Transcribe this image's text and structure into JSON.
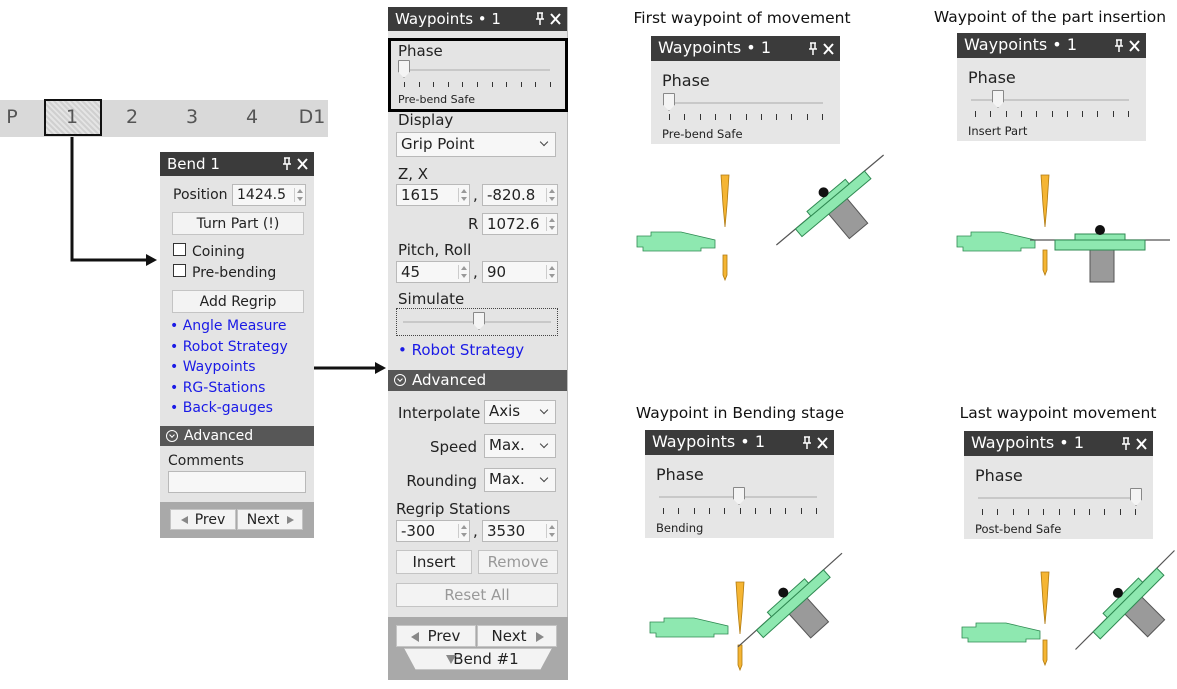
{
  "tabs": [
    "P",
    "1",
    "2",
    "3",
    "4",
    "D1"
  ],
  "bend_panel": {
    "title": "Bend 1",
    "position_label": "Position",
    "position": "1424.5",
    "turn_part": "Turn Part (!)",
    "checkboxes": [
      "Coining",
      "Pre-bending"
    ],
    "add_regrip": "Add Regrip",
    "links": [
      "• Angle Measure",
      "• Robot Strategy",
      "• Waypoints",
      "• RG-Stations",
      "• Back-gauges"
    ],
    "advanced": "Advanced",
    "comments_label": "Comments",
    "prev": "Prev",
    "next": "Next"
  },
  "waypoints_panel": {
    "title": "Waypoints • 1",
    "phase_label": "Phase",
    "phase_value": "Pre-bend Safe",
    "display_label": "Display",
    "display_value": "Grip Point",
    "zx_label": "Z, X",
    "z": "1615",
    "separator": ",",
    "x": "-820.8",
    "r_label": "R",
    "r": "1072.6",
    "pitch_roll_label": "Pitch, Roll",
    "pitch": "45",
    "roll": "90",
    "simulate_label": "Simulate",
    "link": "• Robot Strategy",
    "advanced": "Advanced",
    "interpolate_label": "Interpolate",
    "interpolate": "Axis",
    "speed_label": "Speed",
    "speed": "Max.",
    "rounding_label": "Rounding",
    "rounding": "Max.",
    "regrip_label": "Regrip Stations",
    "regrip_a": "-300",
    "regrip_b": "3530",
    "insert": "Insert",
    "remove": "Remove",
    "reset_all": "Reset All",
    "prev": "Prev",
    "next": "Next",
    "bend": "Bend #1"
  },
  "examples": [
    {
      "caption": "First waypoint of movement",
      "title": "Waypoints • 1",
      "phase_label": "Phase",
      "phase_value": "Pre-bend Safe"
    },
    {
      "caption": "Waypoint of the part insertion",
      "title": "Waypoints • 1",
      "phase_label": "Phase",
      "phase_value": "Insert Part"
    },
    {
      "caption": "Waypoint in Bending stage",
      "title": "Waypoints • 1",
      "phase_label": "Phase",
      "phase_value": "Bending"
    },
    {
      "caption": "Last waypoint movement",
      "title": "Waypoints • 1",
      "phase_label": "Phase",
      "phase_value": "Post-bend Safe"
    }
  ]
}
